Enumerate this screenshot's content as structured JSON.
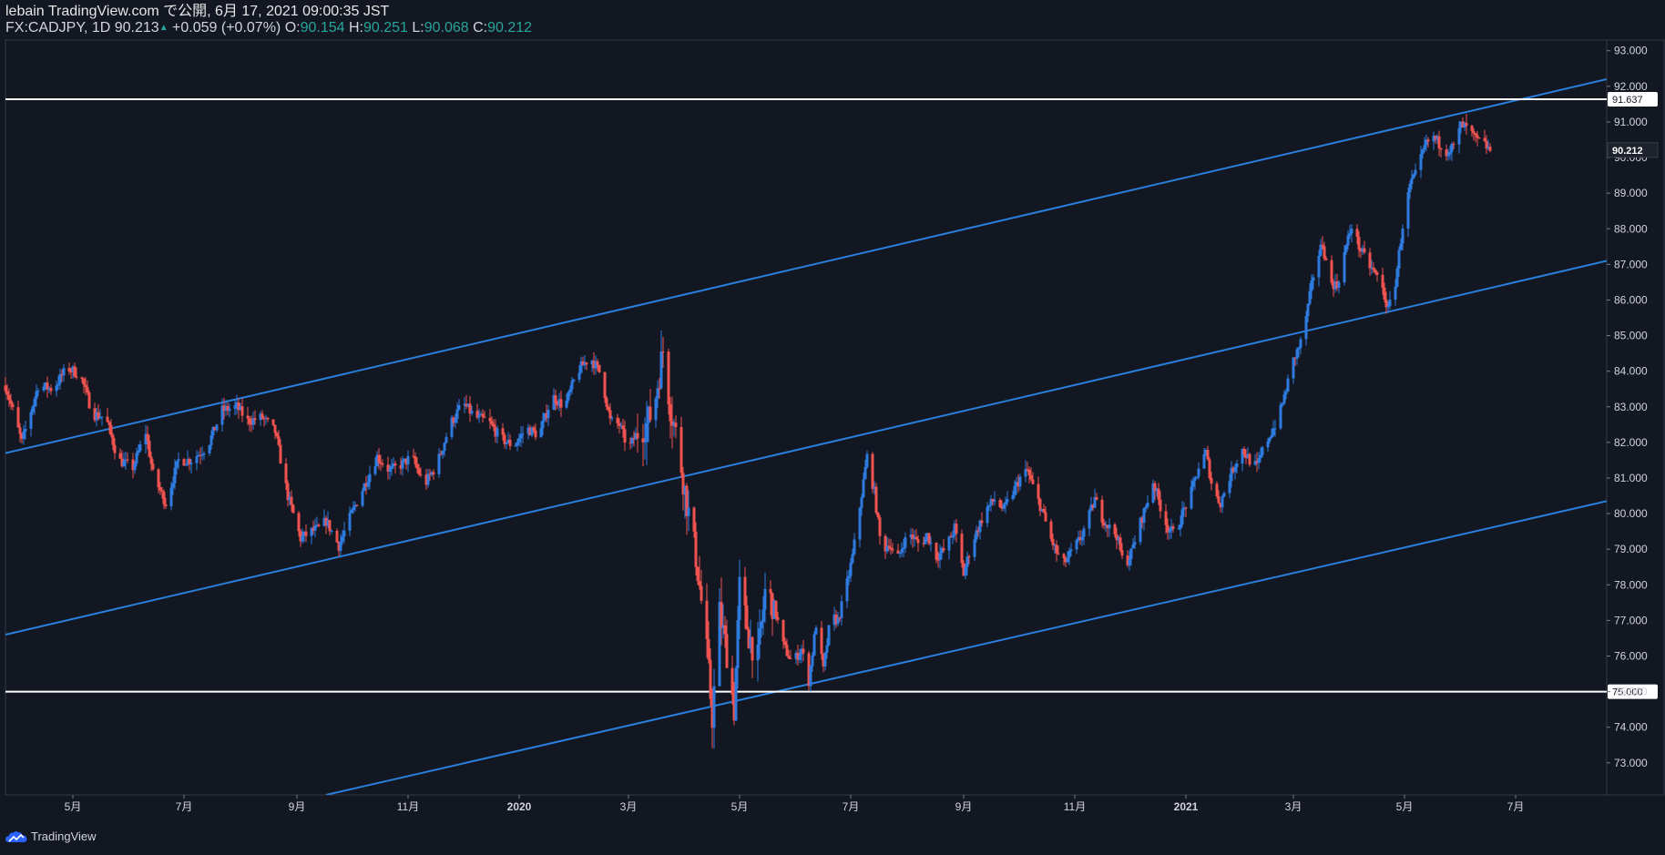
{
  "header": {
    "line1": "lebain TradingView.com で公開, 6月 17, 2021 09:00:35 JST",
    "symbol": "FX:CADJPY, 1D",
    "last_price": "90.213",
    "change": "+0.059 (+0.07%)",
    "o_label": "O:",
    "o_value": "90.154",
    "h_label": "H:",
    "h_value": "90.251",
    "l_label": "L:",
    "l_value": "90.068",
    "c_label": "C:",
    "c_value": "90.212"
  },
  "footer": {
    "brand": "TradingView"
  },
  "colors": {
    "background": "#131722",
    "up": "#2e7be0",
    "down": "#ef5350",
    "channel": "#2a7fdc",
    "level": "#ffffff"
  },
  "chart_data": {
    "type": "candlestick",
    "symbol": "CADJPY",
    "interval": "1D",
    "y_ticks": [
      "93.000",
      "92.000",
      "91.000",
      "90.000",
      "89.000",
      "88.000",
      "87.000",
      "86.000",
      "85.000",
      "84.000",
      "83.000",
      "82.000",
      "81.000",
      "80.000",
      "79.000",
      "78.000",
      "77.000",
      "76.000",
      "75.000",
      "74.000",
      "73.000"
    ],
    "ylim": [
      72.1,
      93.3
    ],
    "x_ticks": [
      {
        "label": "5月",
        "date": "2019-05-01"
      },
      {
        "label": "7月",
        "date": "2019-07-01"
      },
      {
        "label": "9月",
        "date": "2019-09-01"
      },
      {
        "label": "11月",
        "date": "2019-11-01"
      },
      {
        "label": "2020",
        "date": "2020-01-01",
        "bold": true
      },
      {
        "label": "3月",
        "date": "2020-03-01"
      },
      {
        "label": "5月",
        "date": "2020-05-01"
      },
      {
        "label": "7月",
        "date": "2020-07-01"
      },
      {
        "label": "9月",
        "date": "2020-09-01"
      },
      {
        "label": "11月",
        "date": "2020-11-01"
      },
      {
        "label": "2021",
        "date": "2021-01-01",
        "bold": true
      },
      {
        "label": "3月",
        "date": "2021-03-01"
      },
      {
        "label": "5月",
        "date": "2021-05-01"
      },
      {
        "label": "7月",
        "date": "2021-07-01"
      }
    ],
    "xlim": [
      "2019-03-25",
      "2021-08-20"
    ],
    "horizontal_levels": [
      {
        "value": 91.637,
        "label": "91.637"
      },
      {
        "value": 75.0,
        "label": "75.000"
      }
    ],
    "current_price": {
      "value": 90.212,
      "label": "90.212"
    },
    "channel_lines": [
      {
        "start": {
          "date": "2019-03-25",
          "value": 81.7
        },
        "end": {
          "date": "2021-08-20",
          "value": 92.2
        }
      },
      {
        "start": {
          "date": "2019-03-25",
          "value": 76.6
        },
        "end": {
          "date": "2021-08-20",
          "value": 87.1
        }
      },
      {
        "start": {
          "date": "2019-09-17",
          "value": 72.1
        },
        "end": {
          "date": "2021-08-20",
          "value": 80.35
        }
      }
    ],
    "close_path": [
      [
        "2019-03-25",
        83.6
      ],
      [
        "2019-04-03",
        82.0
      ],
      [
        "2019-04-12",
        83.6
      ],
      [
        "2019-04-20",
        83.5
      ],
      [
        "2019-04-28",
        84.1
      ],
      [
        "2019-05-05",
        83.9
      ],
      [
        "2019-05-12",
        82.8
      ],
      [
        "2019-05-19",
        82.7
      ],
      [
        "2019-05-26",
        81.5
      ],
      [
        "2019-06-03",
        81.3
      ],
      [
        "2019-06-10",
        82.3
      ],
      [
        "2019-06-14",
        81.1
      ],
      [
        "2019-06-21",
        80.3
      ],
      [
        "2019-06-28",
        81.5
      ],
      [
        "2019-07-05",
        81.5
      ],
      [
        "2019-07-14",
        81.9
      ],
      [
        "2019-07-22",
        82.9
      ],
      [
        "2019-07-30",
        83.0
      ],
      [
        "2019-08-05",
        82.6
      ],
      [
        "2019-08-13",
        82.7
      ],
      [
        "2019-08-20",
        82.3
      ],
      [
        "2019-08-27",
        80.5
      ],
      [
        "2019-09-03",
        79.3
      ],
      [
        "2019-09-09",
        79.5
      ],
      [
        "2019-09-14",
        79.6
      ],
      [
        "2019-09-17",
        79.8
      ],
      [
        "2019-09-24",
        79.1
      ],
      [
        "2019-10-01",
        80.0
      ],
      [
        "2019-10-08",
        80.8
      ],
      [
        "2019-10-15",
        81.6
      ],
      [
        "2019-10-22",
        81.2
      ],
      [
        "2019-10-29",
        81.4
      ],
      [
        "2019-11-03",
        81.6
      ],
      [
        "2019-11-10",
        80.8
      ],
      [
        "2019-11-17",
        81.4
      ],
      [
        "2019-11-24",
        82.5
      ],
      [
        "2019-12-01",
        83.1
      ],
      [
        "2019-12-08",
        82.7
      ],
      [
        "2019-12-15",
        82.6
      ],
      [
        "2019-12-22",
        82.1
      ],
      [
        "2019-12-29",
        81.9
      ],
      [
        "2020-01-05",
        82.4
      ],
      [
        "2020-01-12",
        82.2
      ],
      [
        "2020-01-19",
        83.3
      ],
      [
        "2020-01-26",
        83.0
      ],
      [
        "2020-02-02",
        84.0
      ],
      [
        "2020-02-09",
        84.4
      ],
      [
        "2020-02-15",
        83.9
      ],
      [
        "2020-02-20",
        82.6
      ],
      [
        "2020-02-25",
        82.5
      ],
      [
        "2020-03-01",
        81.8
      ],
      [
        "2020-03-06",
        82.3
      ],
      [
        "2020-03-11",
        82.5
      ],
      [
        "2020-03-15",
        83.0
      ],
      [
        "2020-03-20",
        84.6
      ],
      [
        "2020-03-24",
        83.0
      ],
      [
        "2020-03-28",
        82.0
      ],
      [
        "2020-04-02",
        80.3
      ],
      [
        "2020-04-07",
        78.8
      ],
      [
        "2020-04-12",
        76.7
      ],
      [
        "2020-04-16",
        74.3
      ],
      [
        "2020-04-20",
        77.2
      ],
      [
        "2020-04-24",
        76.1
      ],
      [
        "2020-04-28",
        74.5
      ],
      [
        "2020-05-01",
        77.9
      ],
      [
        "2020-05-06",
        76.6
      ],
      [
        "2020-05-11",
        75.9
      ],
      [
        "2020-05-15",
        77.8
      ],
      [
        "2020-05-20",
        77.4
      ],
      [
        "2020-05-25",
        76.3
      ],
      [
        "2020-05-30",
        75.8
      ],
      [
        "2020-06-04",
        76.2
      ],
      [
        "2020-06-08",
        75.3
      ],
      [
        "2020-06-12",
        76.9
      ],
      [
        "2020-06-16",
        75.6
      ],
      [
        "2020-06-20",
        77.1
      ],
      [
        "2020-06-24",
        77.0
      ],
      [
        "2020-06-28",
        77.8
      ],
      [
        "2020-07-02",
        78.8
      ],
      [
        "2020-07-06",
        80.2
      ],
      [
        "2020-07-10",
        81.6
      ],
      [
        "2020-07-14",
        80.6
      ],
      [
        "2020-07-18",
        78.9
      ],
      [
        "2020-07-22",
        79.2
      ],
      [
        "2020-07-26",
        78.6
      ],
      [
        "2020-07-30",
        79.2
      ],
      [
        "2020-08-03",
        79.4
      ],
      [
        "2020-08-08",
        79.1
      ],
      [
        "2020-08-12",
        79.4
      ],
      [
        "2020-08-17",
        78.8
      ],
      [
        "2020-08-22",
        79.0
      ],
      [
        "2020-08-27",
        79.6
      ],
      [
        "2020-09-01",
        78.3
      ],
      [
        "2020-09-05",
        79.1
      ],
      [
        "2020-09-09",
        79.6
      ],
      [
        "2020-09-13",
        80.1
      ],
      [
        "2020-09-18",
        80.4
      ],
      [
        "2020-09-23",
        80.1
      ],
      [
        "2020-09-28",
        80.6
      ],
      [
        "2020-10-02",
        81.0
      ],
      [
        "2020-10-06",
        81.2
      ],
      [
        "2020-10-10",
        80.6
      ],
      [
        "2020-10-14",
        80.1
      ],
      [
        "2020-10-18",
        79.4
      ],
      [
        "2020-10-22",
        78.9
      ],
      [
        "2020-10-26",
        78.6
      ],
      [
        "2020-10-30",
        78.9
      ],
      [
        "2020-11-04",
        79.3
      ],
      [
        "2020-11-08",
        79.8
      ],
      [
        "2020-11-12",
        80.4
      ],
      [
        "2020-11-16",
        79.9
      ],
      [
        "2020-11-20",
        79.6
      ],
      [
        "2020-11-24",
        79.4
      ],
      [
        "2020-11-28",
        78.5
      ],
      [
        "2020-12-02",
        78.9
      ],
      [
        "2020-12-06",
        79.6
      ],
      [
        "2020-12-10",
        80.2
      ],
      [
        "2020-12-14",
        80.9
      ],
      [
        "2020-12-18",
        80.2
      ],
      [
        "2020-12-22",
        79.6
      ],
      [
        "2020-12-26",
        79.4
      ],
      [
        "2020-12-30",
        80.0
      ],
      [
        "2021-01-04",
        80.6
      ],
      [
        "2021-01-08",
        81.3
      ],
      [
        "2021-01-12",
        81.7
      ],
      [
        "2021-01-16",
        80.6
      ],
      [
        "2021-01-20",
        80.3
      ],
      [
        "2021-01-24",
        80.9
      ],
      [
        "2021-01-28",
        81.4
      ],
      [
        "2021-02-01",
        81.8
      ],
      [
        "2021-02-05",
        81.5
      ],
      [
        "2021-02-09",
        81.3
      ],
      [
        "2021-02-13",
        81.9
      ],
      [
        "2021-02-17",
        82.3
      ],
      [
        "2021-02-21",
        82.7
      ],
      [
        "2021-02-25",
        83.5
      ],
      [
        "2021-03-01",
        84.3
      ],
      [
        "2021-03-05",
        84.8
      ],
      [
        "2021-03-09",
        85.8
      ],
      [
        "2021-03-13",
        87.0
      ],
      [
        "2021-03-17",
        87.6
      ],
      [
        "2021-03-21",
        86.5
      ],
      [
        "2021-03-25",
        86.4
      ],
      [
        "2021-03-29",
        87.3
      ],
      [
        "2021-04-02",
        88.1
      ],
      [
        "2021-04-06",
        87.5
      ],
      [
        "2021-04-10",
        87.1
      ],
      [
        "2021-04-14",
        86.8
      ],
      [
        "2021-04-18",
        86.5
      ],
      [
        "2021-04-22",
        85.7
      ],
      [
        "2021-04-26",
        86.5
      ],
      [
        "2021-04-30",
        88.1
      ],
      [
        "2021-05-04",
        89.2
      ],
      [
        "2021-05-08",
        89.6
      ],
      [
        "2021-05-12",
        90.3
      ],
      [
        "2021-05-16",
        90.6
      ],
      [
        "2021-05-20",
        90.4
      ],
      [
        "2021-05-24",
        90.2
      ],
      [
        "2021-05-28",
        90.3
      ],
      [
        "2021-06-01",
        90.9
      ],
      [
        "2021-06-05",
        90.8
      ],
      [
        "2021-06-09",
        90.5
      ],
      [
        "2021-06-13",
        90.4
      ],
      [
        "2021-06-17",
        90.21
      ]
    ]
  }
}
